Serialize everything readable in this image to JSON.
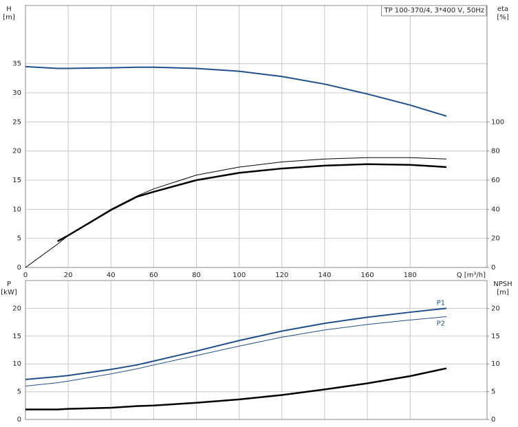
{
  "chart_data": [
    {
      "type": "line",
      "title": "TP 100-370/4, 3*400 V, 50Hz",
      "ylabel": [
        "H",
        "[m]"
      ],
      "y2label": [
        "eta",
        "[%]"
      ],
      "xlabel": "Q [m³/h]",
      "xlim": [
        0,
        216
      ],
      "xticks": [
        0,
        20,
        40,
        60,
        80,
        100,
        120,
        140,
        160,
        180
      ],
      "ylim": [
        0,
        45
      ],
      "yticks": [
        0,
        5,
        10,
        15,
        20,
        25,
        30,
        35
      ],
      "y2lim": [
        0,
        180
      ],
      "y2ticks": [
        0,
        20,
        40,
        60,
        80,
        100
      ],
      "grid": true,
      "x": [
        0,
        15,
        20,
        40,
        52,
        60,
        80,
        100,
        120,
        140,
        160,
        180,
        197
      ],
      "series": [
        {
          "color": "#1f4e8c",
          "values": [
            34.5,
            34.2,
            34.2,
            34.3,
            34.4,
            34.4,
            34.2,
            33.7,
            32.8,
            31.5,
            29.8,
            27.9,
            26
          ]
        },
        {
          "color": "#000000",
          "axis": "y2",
          "values": [
            0,
            16,
            22,
            40,
            49,
            54,
            63.5,
            69,
            72.5,
            74.5,
            75.5,
            75.5,
            74.5
          ]
        },
        {
          "color": "#000000",
          "axis": "y2",
          "values": [
            null,
            18,
            22,
            39.5,
            48.5,
            52,
            60,
            65,
            68,
            70,
            71,
            70.5,
            69
          ]
        }
      ]
    },
    {
      "type": "line",
      "ylabel": [
        "P",
        "[kW]"
      ],
      "y2label": [
        "NPSH",
        "[m]"
      ],
      "xlim": [
        0,
        216
      ],
      "ylim": [
        0,
        25
      ],
      "yticks": [
        0,
        5,
        10,
        15,
        20
      ],
      "y2lim": [
        0,
        25
      ],
      "y2ticks": [
        0,
        5,
        10,
        15,
        20
      ],
      "grid": true,
      "x": [
        0,
        15,
        20,
        40,
        52,
        60,
        80,
        100,
        120,
        140,
        160,
        180,
        197
      ],
      "series": [
        {
          "name": "P1",
          "color": "#1f4e8c",
          "values": [
            7.2,
            7.7,
            7.9,
            9,
            9.8,
            10.5,
            12.3,
            14.2,
            15.9,
            17.3,
            18.4,
            19.3,
            20
          ]
        },
        {
          "name": "P2",
          "color": "#1f4e8c",
          "values": [
            6,
            6.6,
            6.9,
            8.2,
            9.1,
            9.8,
            11.5,
            13.2,
            14.8,
            16.1,
            17.1,
            17.9,
            18.5
          ]
        },
        {
          "color": "#000000",
          "axis": "y2",
          "values": [
            1.8,
            1.8,
            1.9,
            2.1,
            2.4,
            2.5,
            3,
            3.6,
            4.4,
            5.4,
            6.5,
            7.8,
            9.2
          ]
        }
      ]
    }
  ]
}
